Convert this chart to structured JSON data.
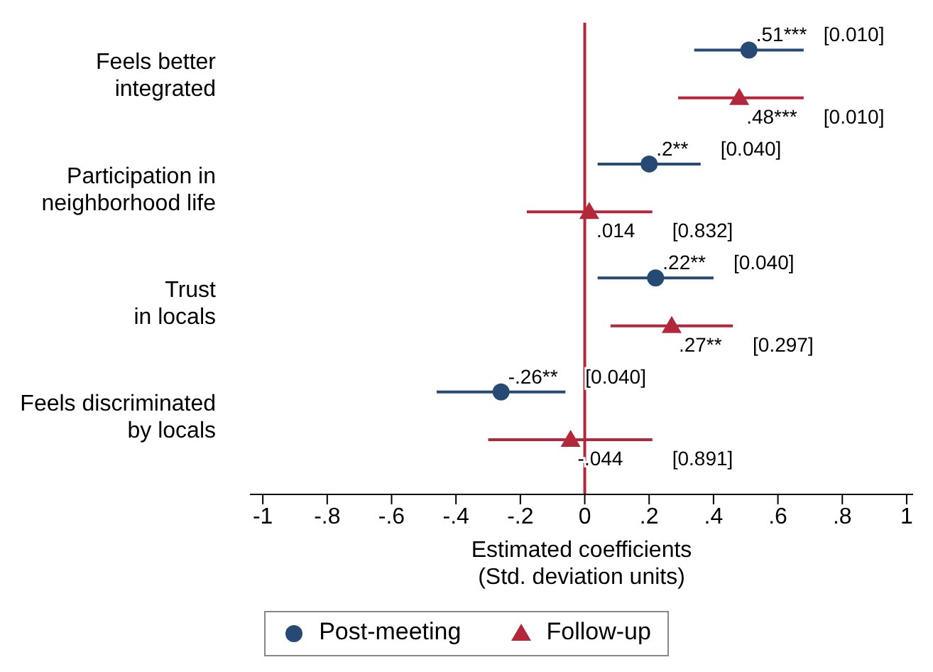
{
  "chart_data": {
    "type": "scatter",
    "orientation": "horizontal",
    "categories": [
      "Feels better\nintegrated",
      "Participation in\nneighborhood life",
      "Trust\nin locals",
      "Feels discriminated\nby locals"
    ],
    "series": [
      {
        "name": "Post-meeting",
        "color": "#274a74",
        "marker": "circle",
        "values": [
          0.51,
          0.2,
          0.22,
          -0.26
        ],
        "errors": [
          [
            0.34,
            0.68
          ],
          [
            0.04,
            0.36
          ],
          [
            0.04,
            0.4
          ],
          [
            -0.46,
            -0.06
          ]
        ],
        "value_labels": [
          ".51***",
          ".2**",
          ".22**",
          "-.26**"
        ]
      },
      {
        "name": "Follow-up",
        "color": "#b4273b",
        "marker": "triangle",
        "values": [
          0.48,
          0.014,
          0.27,
          -0.044
        ],
        "errors": [
          [
            0.29,
            0.68
          ],
          [
            -0.18,
            0.21
          ],
          [
            0.08,
            0.46
          ],
          [
            -0.3,
            0.21
          ]
        ],
        "value_labels": [
          ".48***",
          ".014",
          ".27**",
          "-.044"
        ]
      }
    ],
    "xlabel": "Estimated coefficients\n(Std. deviation units)",
    "xlim": [
      -1.04,
      1.02
    ],
    "xticks": [
      -1,
      {
        "value": -0.8,
        "label": "-.8"
      },
      {
        "value": -0.6,
        "label": "-.6"
      },
      {
        "value": -0.4,
        "label": "-.4"
      },
      {
        "value": -0.2,
        "label": "-.2"
      },
      0,
      {
        "value": 0.2,
        "label": ".2"
      },
      {
        "value": 0.4,
        "label": ".4"
      },
      {
        "value": 0.6,
        "label": ".6"
      },
      {
        "value": 0.8,
        "label": ".8"
      },
      1
    ],
    "ref_lines": [
      {
        "axis": "x",
        "value": 0,
        "color": "#b4273b"
      }
    ],
    "annotations": [
      "[0.010]",
      "[0.040]",
      "[0.040]",
      "[0.040]",
      "[0.010]",
      "[0.832]",
      "[0.297]",
      "[0.891]"
    ],
    "grid": false,
    "legend": "bottom"
  }
}
